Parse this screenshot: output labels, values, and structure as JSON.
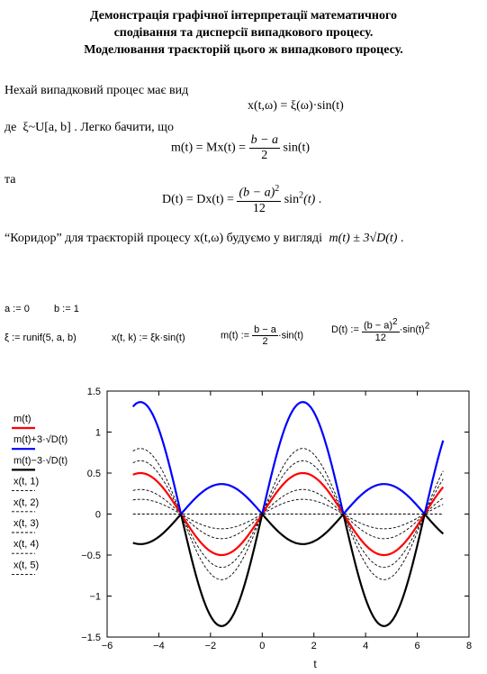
{
  "document": {
    "title_lines": [
      "Демонстрація графічної інтерпретації математичного",
      "сподівання та дисперсії випадкового процесу.",
      "Моделювання траєкторій цього ж випадкового процесу."
    ],
    "intro": "Нехай випадковий процес має вид",
    "process_formula": "x(t,ω) = ξ(ω)·sin(t)",
    "where_prefix": "де",
    "dist": "ξ~U[a, b]",
    "easy_to_see": ". Легко бачити, що",
    "mean_lhs": "m(t) = Mx(t) =",
    "mean_num": "b − a",
    "mean_den": "2",
    "mean_rhs": "sin(t)",
    "and_word": "та",
    "var_lhs": "D(t) = Dx(t) =",
    "var_num": "(b − a)",
    "var_num_exp": "2",
    "var_den": "12",
    "var_rhs": "sin",
    "var_rhs_exp": "2",
    "var_rhs_arg": "(t)",
    "var_end": ".",
    "corridor_text": "“Коридор” для траєкторій процесу x(t,ω) будуємо у вигляді",
    "corridor_formula": "m(t) ± 3√D(t)",
    "corridor_end": ".",
    "def_a": "a := 0",
    "def_b": "b := 1",
    "def_xi": "ξ := runif(5, a, b)",
    "def_x": "x(t, k) := ξk·sin(t)",
    "def_m_lhs": "m(t) :=",
    "def_m_num": "b − a",
    "def_m_den": "2",
    "def_m_rhs": "·sin(t)",
    "def_D_lhs": "D(t) :=",
    "def_D_num": "(b − a)",
    "def_D_num_exp": "2",
    "def_D_den": "12",
    "def_D_rhs": "·sin(t)",
    "def_D_rhs_exp": "2"
  },
  "chart_data": {
    "type": "line",
    "xlabel": "t",
    "ylabel": "",
    "xlim": [
      -6,
      8
    ],
    "ylim": [
      -1.5,
      1.5
    ],
    "xticks": [
      -6,
      -4,
      -2,
      0,
      2,
      4,
      6,
      8
    ],
    "yticks": [
      -1.5,
      -1,
      -0.5,
      0,
      0.5,
      1,
      1.5
    ],
    "t_range": [
      -5,
      7
    ],
    "grid": false,
    "legend_position": "left-outside",
    "series": [
      {
        "name": "m(t)",
        "expr": "0.5*sin(t)",
        "color": "#ff0000",
        "style": "solid",
        "width": 2.2
      },
      {
        "name": "m(t)+3·√D(t)",
        "expr": "0.5*sin(t)+0.866*|sin(t)|",
        "color": "#0000ff",
        "style": "solid",
        "width": 2.2
      },
      {
        "name": "m(t)−3·√D(t)",
        "expr": "0.5*sin(t)-0.866*|sin(t)|",
        "color": "#000000",
        "style": "solid",
        "width": 2.2
      },
      {
        "name": "x(t, 1)",
        "amplitude": 0.8,
        "color": "#000000",
        "style": "dashed",
        "width": 0.9
      },
      {
        "name": "x(t, 2)",
        "amplitude": 0.65,
        "color": "#000000",
        "style": "dashed",
        "width": 0.9
      },
      {
        "name": "x(t, 3)",
        "amplitude": 0.3,
        "color": "#000000",
        "style": "dashed",
        "width": 0.9
      },
      {
        "name": "x(t, 4)",
        "amplitude": 0.18,
        "color": "#000000",
        "style": "dashed",
        "width": 0.9
      },
      {
        "name": "x(t, 5)",
        "amplitude": 0.0,
        "color": "#000000",
        "style": "dashed",
        "width": 0.9
      }
    ]
  }
}
